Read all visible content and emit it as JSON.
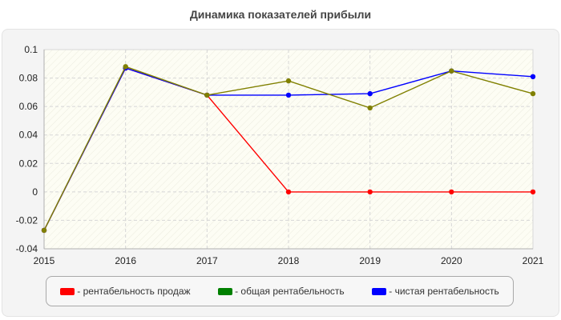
{
  "chart_data": {
    "type": "line",
    "title": "Динамика показателей прибыли",
    "xlabel": "",
    "ylabel": "",
    "x": [
      "2015",
      "2016",
      "2017",
      "2018",
      "2019",
      "2020",
      "2021"
    ],
    "xlim": [
      2015,
      2021
    ],
    "ylim": [
      -0.04,
      0.1
    ],
    "yticks": [
      -0.04,
      -0.02,
      0,
      0.02,
      0.04,
      0.06,
      0.08,
      0.1
    ],
    "ytick_labels": [
      "-0.04",
      "-0.02",
      "0",
      "0.02",
      "0.04",
      "0.06",
      "0.08",
      "0.1"
    ],
    "grid": true,
    "legend_position": "bottom",
    "series": [
      {
        "name": "- рентабельность продаж",
        "color": "#ff0000",
        "values": [
          -0.027,
          0.087,
          0.068,
          0.0,
          0.0,
          0.0,
          0.0
        ]
      },
      {
        "name": "- чистая рентабельность",
        "color": "#0000ff",
        "values": [
          -0.027,
          0.087,
          0.068,
          0.068,
          0.069,
          0.085,
          0.081
        ]
      },
      {
        "name": "- общая рентабельность",
        "color": "#808000",
        "legend_color": "#008000",
        "values": [
          -0.027,
          0.088,
          0.068,
          0.078,
          0.059,
          0.085,
          0.069
        ]
      }
    ],
    "legend": [
      {
        "label": "- рентабельность продаж",
        "color": "#ff0000"
      },
      {
        "label": "- общая рентабельность",
        "color": "#008000"
      },
      {
        "label": "- чистая рентабельность",
        "color": "#0000ff"
      }
    ]
  }
}
